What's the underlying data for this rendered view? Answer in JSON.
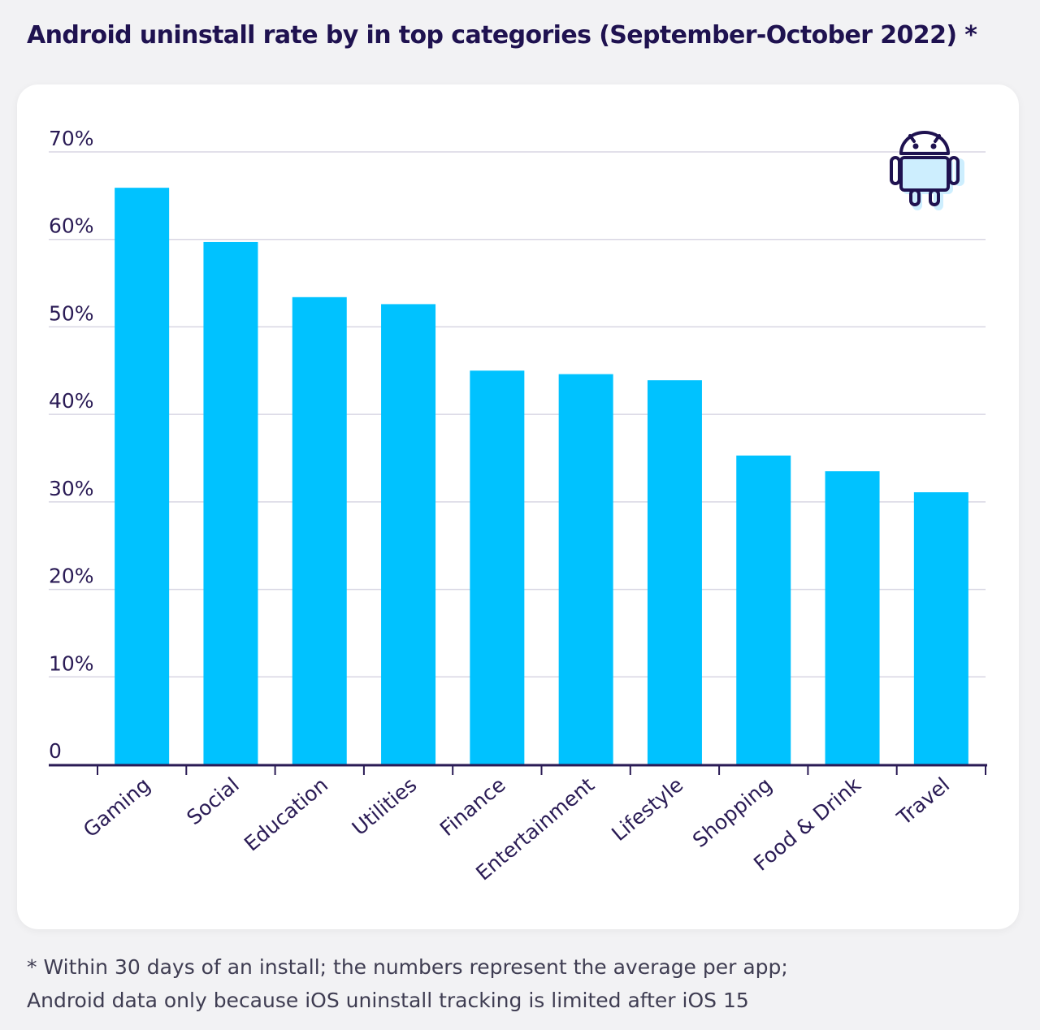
{
  "title": "Android uninstall rate by in top categories (September-October 2022) *",
  "footnote": {
    "line1": "* Within 30 days of an install; the numbers represent the average per app;",
    "line2": "Android data only because iOS uninstall tracking is limited after iOS 15"
  },
  "colors": {
    "bar": "#00c2ff",
    "title": "#1f1250",
    "axis": "#2a1b55",
    "grid": "#d8d6e3",
    "tick_text": "#2a1b55"
  },
  "icon": "android-robot-icon",
  "chart_data": {
    "type": "bar",
    "title": "Android uninstall rate by in top categories (September-October 2022) *",
    "xlabel": "",
    "ylabel": "",
    "categories": [
      "Gaming",
      "Social",
      "Education",
      "Utilities",
      "Finance",
      "Entertainment",
      "Lifestyle",
      "Shopping",
      "Food & Drink",
      "Travel"
    ],
    "values": [
      65.9,
      59.7,
      53.4,
      52.6,
      45.0,
      44.6,
      43.9,
      35.3,
      33.5,
      31.1
    ],
    "ylim": [
      0,
      70
    ],
    "yticks": [
      0,
      10,
      20,
      30,
      40,
      50,
      60,
      70
    ],
    "ytick_labels": [
      "0",
      "10%",
      "20%",
      "30%",
      "40%",
      "50%",
      "60%",
      "70%"
    ],
    "grid": true,
    "legend": "none"
  }
}
